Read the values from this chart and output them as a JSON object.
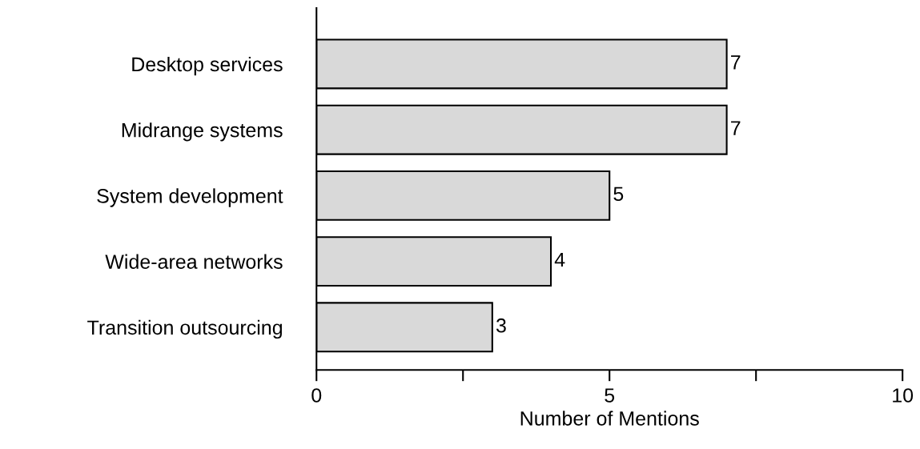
{
  "chart_data": {
    "type": "bar",
    "orientation": "horizontal",
    "xlabel": "Number of Mentions",
    "categories": [
      "Desktop services",
      "Midrange systems",
      "System development",
      "Wide-area networks",
      "Transition outsourcing"
    ],
    "values": [
      7,
      7,
      5,
      4,
      3
    ],
    "color": "#d9d9d9",
    "xlim": [
      0,
      10
    ],
    "xticks": [
      0,
      {
        "value": 2.5,
        "label": null
      },
      5,
      {
        "value": 7.5,
        "label": null
      },
      10
    ],
    "data_labels": true,
    "grid": false,
    "legend": false
  }
}
